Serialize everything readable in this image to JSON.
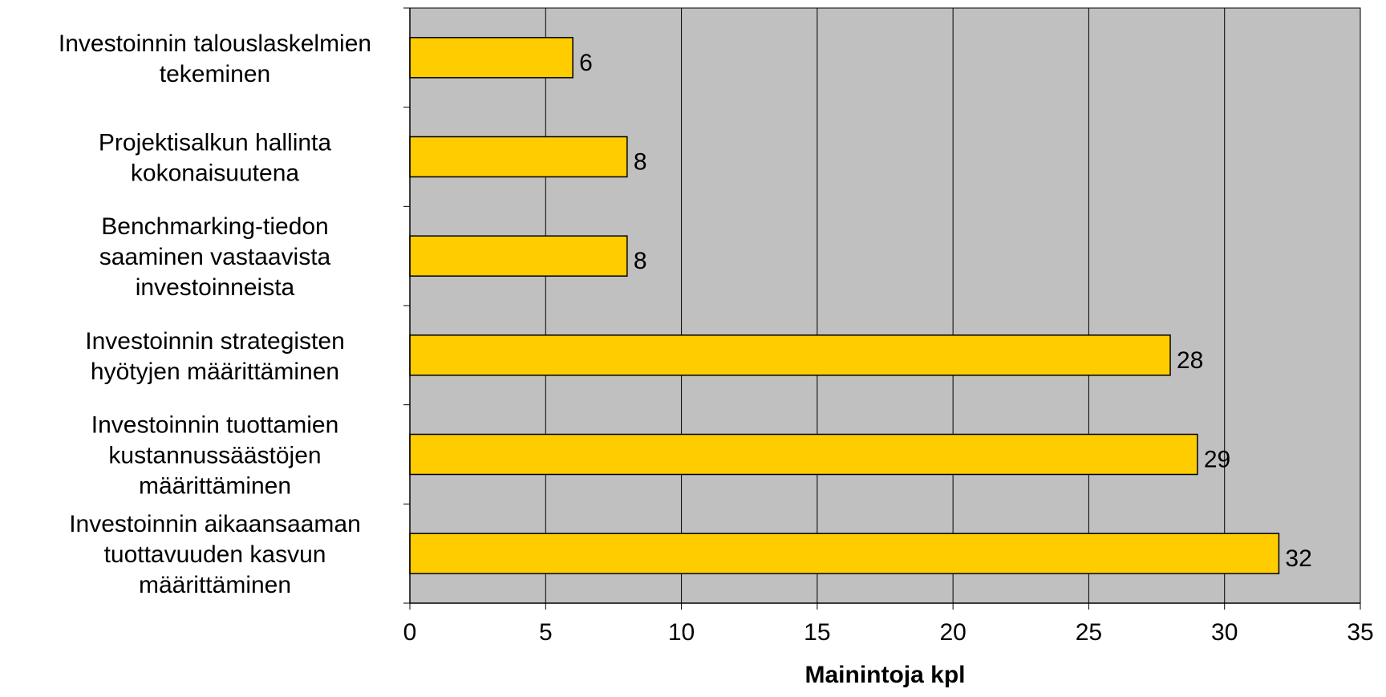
{
  "chart_data": {
    "type": "bar",
    "orientation": "horizontal",
    "title": "",
    "xlabel": "Mainintoja kpl",
    "ylabel": "",
    "xlim": [
      0,
      35
    ],
    "x_ticks": [
      0,
      5,
      10,
      15,
      20,
      25,
      30,
      35
    ],
    "grid": true,
    "legend": "none",
    "bar_color": "#ffcc00",
    "plot_background": "#c0c0c0",
    "categories": [
      [
        "Investoinnin talouslaskelmien",
        "tekeminen"
      ],
      [
        "Projektisalkun hallinta",
        "kokonaisuutena"
      ],
      [
        "Benchmarking-tiedon",
        "saaminen vastaavista",
        "investoinneista"
      ],
      [
        "Investoinnin strategisten",
        "hyötyjen määrittäminen"
      ],
      [
        "Investoinnin tuottamien",
        "kustannussäästöjen",
        "määrittäminen"
      ],
      [
        "Investoinnin aikaansaaman",
        "tuottavuuden kasvun",
        "määrittäminen"
      ]
    ],
    "values": [
      6,
      8,
      8,
      28,
      29,
      32
    ],
    "data_labels": [
      "6",
      "8",
      "8",
      "28",
      "29",
      "32"
    ]
  }
}
